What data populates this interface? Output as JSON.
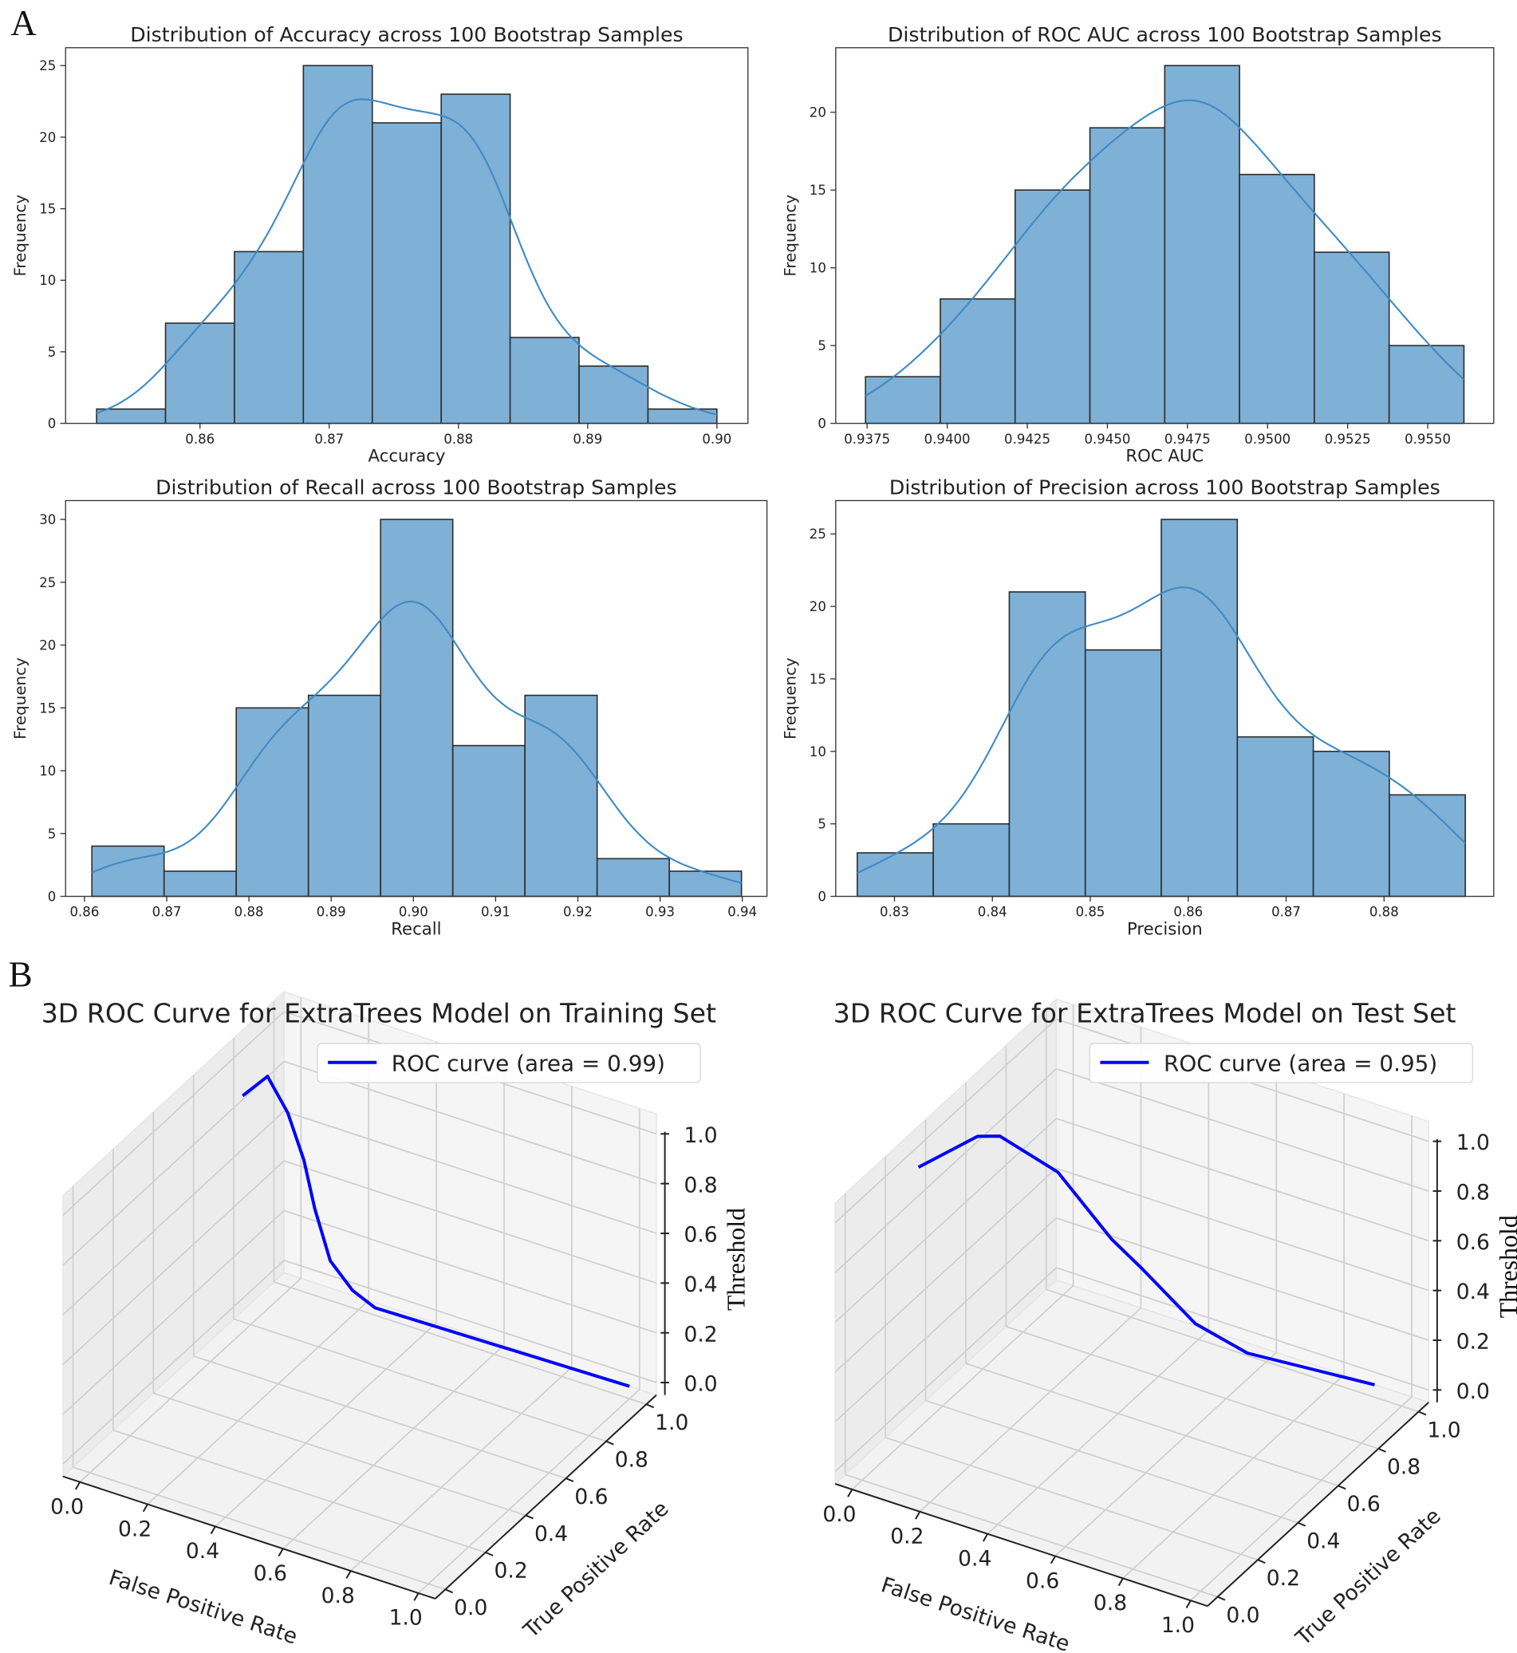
{
  "panel_labels": {
    "a": "A",
    "b": "B"
  },
  "chart_data": [
    {
      "type": "bar",
      "title": "Distribution of Accuracy across 100 Bootstrap Samples",
      "xlabel": "Accuracy",
      "ylabel": "Frequency",
      "bin_range": [
        0.852,
        0.9
      ],
      "values": [
        1,
        7,
        12,
        25,
        21,
        23,
        6,
        4,
        1
      ],
      "xticks": [
        "0.86",
        "0.87",
        "0.88",
        "0.89",
        "0.90"
      ],
      "yticks": [
        "0",
        "5",
        "10",
        "15",
        "20",
        "25"
      ],
      "xlim": [
        0.8496,
        0.9024
      ],
      "ylim": [
        0,
        26.25
      ],
      "kde": true,
      "color": "#7fb0d6"
    },
    {
      "type": "bar",
      "title": "Distribution of ROC AUC across 100 Bootstrap Samples",
      "xlabel": "ROC AUC",
      "ylabel": "Frequency",
      "bin_range": [
        0.93745,
        0.95613
      ],
      "values": [
        3,
        8,
        15,
        19,
        23,
        16,
        11,
        5
      ],
      "xticks": [
        "0.9375",
        "0.9400",
        "0.9425",
        "0.9450",
        "0.9475",
        "0.9500",
        "0.9525",
        "0.9550"
      ],
      "yticks": [
        "0",
        "5",
        "10",
        "15",
        "20"
      ],
      "xlim": [
        0.93652,
        0.95706
      ],
      "ylim": [
        0,
        24.15
      ],
      "kde": true,
      "color": "#7fb0d6"
    },
    {
      "type": "bar",
      "title": "Distribution of Recall across 100 Bootstrap Samples",
      "xlabel": "Recall",
      "ylabel": "Frequency",
      "bin_range": [
        0.8609,
        0.9399
      ],
      "values": [
        4,
        2,
        15,
        16,
        30,
        12,
        16,
        3,
        2
      ],
      "xticks": [
        "0.86",
        "0.87",
        "0.88",
        "0.89",
        "0.90",
        "0.91",
        "0.92",
        "0.93",
        "0.94"
      ],
      "yticks": [
        "0",
        "5",
        "10",
        "15",
        "20",
        "25",
        "30"
      ],
      "xlim": [
        0.8577,
        0.943
      ],
      "ylim": [
        0,
        31.5
      ],
      "kde": true,
      "color": "#7fb0d6"
    },
    {
      "type": "bar",
      "title": "Distribution of Precision across 100 Bootstrap Samples",
      "xlabel": "Precision",
      "ylabel": "Frequency",
      "bin_range": [
        0.8262,
        0.8883
      ],
      "values": [
        3,
        5,
        21,
        17,
        26,
        11,
        10,
        7
      ],
      "xticks": [
        "0.83",
        "0.84",
        "0.85",
        "0.86",
        "0.87",
        "0.88"
      ],
      "yticks": [
        "0",
        "5",
        "10",
        "15",
        "20",
        "25"
      ],
      "xlim": [
        0.824,
        0.8912
      ],
      "ylim": [
        0,
        27.3
      ],
      "kde": true,
      "color": "#7fb0d6"
    },
    {
      "type": "line3d",
      "title": "3D ROC Curve for ExtraTrees Model on Training Set",
      "xlabel": "False Positive Rate",
      "ylabel": "True Positive Rate",
      "zlabel": "Threshold",
      "ticks": [
        "0.0",
        "0.2",
        "0.4",
        "0.6",
        "0.8",
        "1.0"
      ],
      "legend": "ROC curve (area = 0.99)",
      "legend_position": "lower-right",
      "color": "#0000ff",
      "points": [
        [
          0,
          0.76,
          0.9
        ],
        [
          0.02,
          0.85,
          0.92
        ],
        [
          0.05,
          0.9,
          0.75
        ],
        [
          0.08,
          0.93,
          0.55
        ],
        [
          0.1,
          0.95,
          0.35
        ],
        [
          0.14,
          0.96,
          0.15
        ],
        [
          0.2,
          0.97,
          0.05
        ],
        [
          0.26,
          0.98,
          0.0
        ],
        [
          1.0,
          1.0,
          0.0
        ]
      ]
    },
    {
      "type": "line3d",
      "title": "3D ROC Curve for ExtraTrees Model on Test Set",
      "xlabel": "False Positive Rate",
      "ylabel": "True Positive Rate",
      "zlabel": "Threshold",
      "ticks": [
        "0.0",
        "0.2",
        "0.4",
        "0.6",
        "0.8",
        "1.0"
      ],
      "legend": "ROC curve (area = 0.95)",
      "legend_position": "lower-right",
      "color": "#0000ff",
      "points": [
        [
          0,
          0.28,
          1.0
        ],
        [
          0.05,
          0.49,
          0.99
        ],
        [
          0.08,
          0.55,
          0.96
        ],
        [
          0.15,
          0.72,
          0.72
        ],
        [
          0.25,
          0.82,
          0.42
        ],
        [
          0.33,
          0.84,
          0.32
        ],
        [
          0.45,
          0.9,
          0.11
        ],
        [
          0.58,
          0.94,
          0.02
        ],
        [
          0.92,
          1.0,
          0.0
        ]
      ]
    }
  ]
}
